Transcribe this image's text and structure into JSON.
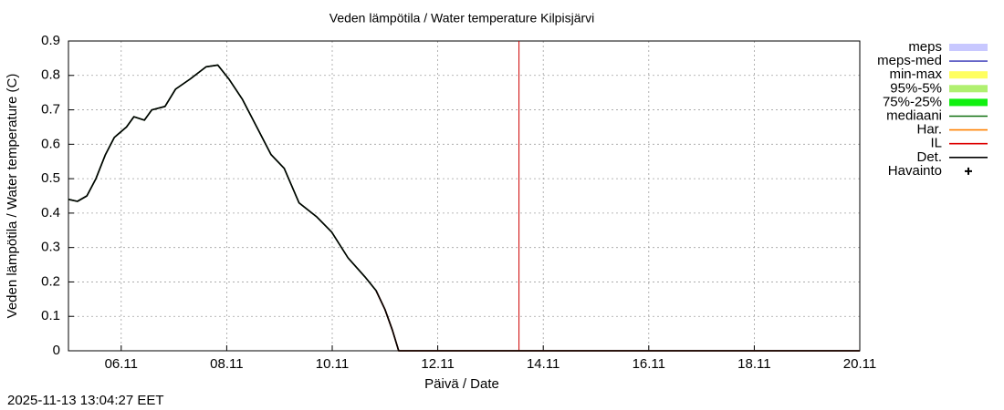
{
  "chart_data": {
    "type": "line",
    "title": "Veden lämpötila / Water temperature Kilpisjärvi",
    "xlabel": "Päivä / Date",
    "ylabel": "Veden lämpötila / Water temperature (C)",
    "footer": "2025-11-13 13:04:27 EET",
    "x": [
      5.0,
      5.17,
      5.35,
      5.52,
      5.7,
      5.87,
      6.1,
      6.24,
      6.44,
      6.58,
      6.83,
      7.03,
      7.31,
      7.61,
      7.83,
      8.04,
      8.3,
      8.57,
      8.84,
      9.09,
      9.37,
      9.7,
      9.99,
      10.3,
      10.62,
      10.83,
      11.0,
      11.14,
      11.26,
      16,
      20
    ],
    "xlim": [
      5,
      20
    ],
    "xticks": [
      {
        "value": 6,
        "label": "06.11"
      },
      {
        "value": 8,
        "label": "08.11"
      },
      {
        "value": 10,
        "label": "10.11"
      },
      {
        "value": 12,
        "label": "12.11"
      },
      {
        "value": 14,
        "label": "14.11"
      },
      {
        "value": 16,
        "label": "16.11"
      },
      {
        "value": 18,
        "label": "18.11"
      },
      {
        "value": 20,
        "label": "20.11"
      }
    ],
    "ylim": [
      0,
      0.9
    ],
    "yticks": [
      0,
      0.1,
      0.2,
      0.3,
      0.4,
      0.5,
      0.6,
      0.7,
      0.8,
      0.9
    ],
    "grid": true,
    "legend": "right",
    "now_line": {
      "x": 13.54,
      "color": "#cc0000"
    },
    "series": [
      {
        "name": "meps",
        "color": "#c8c8ff",
        "style": "band",
        "values": [
          null,
          null,
          null,
          null,
          null,
          null,
          null,
          null,
          null,
          null,
          null,
          null,
          null,
          null,
          null,
          null,
          null,
          null,
          null,
          null,
          null,
          null,
          null,
          null,
          null,
          null,
          null,
          null,
          null,
          null,
          null
        ]
      },
      {
        "name": "meps-med",
        "color": "#5050c0",
        "style": "line",
        "values": [
          null,
          null,
          null,
          null,
          null,
          null,
          null,
          null,
          null,
          null,
          null,
          null,
          null,
          null,
          null,
          null,
          null,
          null,
          null,
          null,
          null,
          null,
          null,
          null,
          null,
          null,
          null,
          null,
          null,
          null,
          null
        ]
      },
      {
        "name": "min-max",
        "color": "#ffff60",
        "style": "band",
        "values": [
          null,
          null,
          null,
          null,
          null,
          null,
          null,
          null,
          null,
          null,
          null,
          null,
          null,
          null,
          null,
          null,
          null,
          null,
          null,
          null,
          null,
          null,
          null,
          null,
          null,
          null,
          null,
          null,
          null,
          null,
          null
        ]
      },
      {
        "name": "95%-5%",
        "color": "#b0f070",
        "style": "band",
        "values": [
          null,
          null,
          null,
          null,
          null,
          null,
          null,
          null,
          null,
          null,
          null,
          null,
          null,
          null,
          null,
          null,
          null,
          null,
          null,
          null,
          null,
          null,
          null,
          null,
          null,
          null,
          null,
          null,
          null,
          null,
          null
        ]
      },
      {
        "name": "75%-25%",
        "color": "#10f010",
        "style": "band",
        "values": [
          null,
          null,
          null,
          null,
          null,
          null,
          null,
          null,
          null,
          null,
          null,
          null,
          null,
          null,
          null,
          null,
          null,
          null,
          null,
          null,
          null,
          null,
          null,
          null,
          null,
          null,
          null,
          null,
          null,
          null,
          null
        ]
      },
      {
        "name": "mediaani",
        "color": "#107010",
        "style": "line",
        "values": [
          0.44,
          0.434,
          0.45,
          0.5,
          0.57,
          0.62,
          0.65,
          0.68,
          0.67,
          0.7,
          0.71,
          0.76,
          0.79,
          0.825,
          0.83,
          0.79,
          0.73,
          0.65,
          0.57,
          0.53,
          0.43,
          0.39,
          0.345,
          0.27,
          0.215,
          0.175,
          0.12,
          0.06,
          0,
          0,
          0
        ]
      },
      {
        "name": "Har.",
        "color": "#ff8000",
        "style": "line",
        "values": [
          null,
          null,
          null,
          null,
          null,
          null,
          null,
          null,
          null,
          null,
          null,
          null,
          null,
          null,
          null,
          null,
          null,
          null,
          null,
          null,
          null,
          null,
          null,
          null,
          null,
          null,
          null,
          null,
          null,
          null,
          null
        ]
      },
      {
        "name": "IL",
        "color": "#dd0000",
        "style": "line",
        "values": [
          null,
          null,
          null,
          null,
          null,
          null,
          null,
          null,
          null,
          null,
          null,
          null,
          null,
          null,
          null,
          null,
          null,
          null,
          null,
          null,
          null,
          null,
          null,
          null,
          null,
          0.175,
          0.12,
          0.06,
          0,
          0,
          0
        ]
      },
      {
        "name": "Det.",
        "color": "#000000",
        "style": "line",
        "values": [
          0.44,
          0.434,
          0.45,
          0.5,
          0.57,
          0.62,
          0.65,
          0.68,
          0.67,
          0.7,
          0.71,
          0.76,
          0.79,
          0.825,
          0.83,
          0.79,
          0.73,
          0.65,
          0.57,
          0.53,
          0.43,
          0.39,
          0.345,
          0.27,
          0.215,
          0.175,
          0.12,
          0.06,
          0,
          0,
          0
        ]
      },
      {
        "name": "Havainto",
        "color": "#000000",
        "style": "point",
        "values": [
          null,
          null,
          null,
          null,
          null,
          null,
          null,
          null,
          null,
          null,
          null,
          null,
          null,
          null,
          null,
          null,
          null,
          null,
          null,
          null,
          null,
          null,
          null,
          null,
          null,
          null,
          null,
          null,
          null,
          null,
          null
        ]
      }
    ]
  }
}
